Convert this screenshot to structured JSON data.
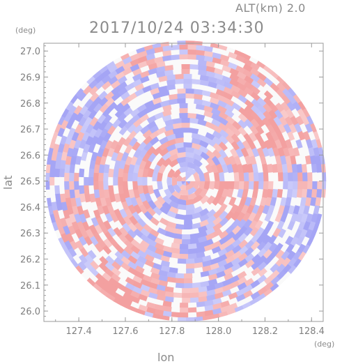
{
  "header": {
    "altitude_label": "ALT(km) 2.0",
    "datetime": "2017/10/24 03:34:30"
  },
  "chart_data": {
    "type": "heatmap",
    "title": "2017/10/24 03:34:30",
    "xlabel": "lon",
    "ylabel": "lat",
    "x_unit": "(deg)",
    "y_unit": "(deg)",
    "xlim": [
      127.25,
      128.45
    ],
    "ylim": [
      25.96,
      27.03
    ],
    "x_ticks": [
      127.4,
      127.6,
      127.8,
      128.0,
      128.2,
      128.4
    ],
    "x_tick_labels": [
      "127.4",
      "127.6",
      "127.8",
      "128.0",
      "128.2",
      "128.4"
    ],
    "y_ticks": [
      27.0,
      26.9,
      26.8,
      26.7,
      26.6,
      26.5,
      26.4,
      26.3,
      26.2,
      26.1,
      26.0
    ],
    "y_tick_labels": [
      "27.0",
      "26.9",
      "26.8",
      "26.7",
      "26.6",
      "26.5",
      "26.4",
      "26.3",
      "26.2",
      "26.1",
      "26.0"
    ],
    "center": {
      "lon": 127.86,
      "lat": 26.5
    },
    "radius_deg_lat": 0.54,
    "grid": false,
    "colors": {
      "positive": "#f4a6a6",
      "negative": "#a8a8f4",
      "axis": "#9a9a9a"
    }
  }
}
